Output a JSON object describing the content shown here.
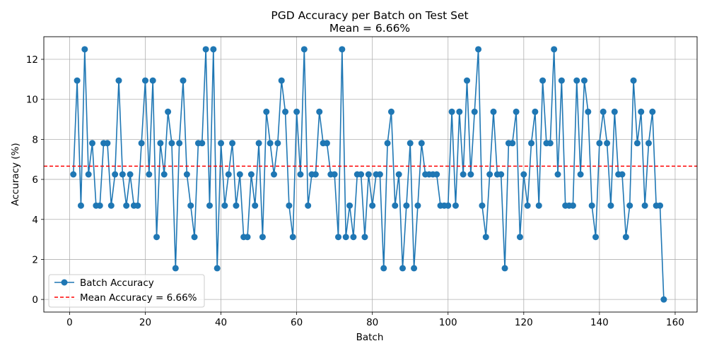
{
  "chart_data": {
    "type": "line",
    "title": "PGD Accuracy per Batch on Test Set",
    "subtitle": "Mean = 6.66%",
    "xlabel": "Batch",
    "ylabel": "Accuracy (%)",
    "xlim": [
      -6.8,
      165.8
    ],
    "ylim": [
      -0.63,
      13.13
    ],
    "xticks": [
      0,
      20,
      40,
      60,
      80,
      100,
      120,
      140,
      160
    ],
    "yticks": [
      0,
      2,
      4,
      6,
      8,
      10,
      12
    ],
    "grid": true,
    "legend_position": "lower-left",
    "series": [
      {
        "name": "Batch Accuracy",
        "color": "#1f77b4",
        "marker": "circle",
        "x": [
          1,
          2,
          3,
          4,
          5,
          6,
          7,
          8,
          9,
          10,
          11,
          12,
          13,
          14,
          15,
          16,
          17,
          18,
          19,
          20,
          21,
          22,
          23,
          24,
          25,
          26,
          27,
          28,
          29,
          30,
          31,
          32,
          33,
          34,
          35,
          36,
          37,
          38,
          39,
          40,
          41,
          42,
          43,
          44,
          45,
          46,
          47,
          48,
          49,
          50,
          51,
          52,
          53,
          54,
          55,
          56,
          57,
          58,
          59,
          60,
          61,
          62,
          63,
          64,
          65,
          66,
          67,
          68,
          69,
          70,
          71,
          72,
          73,
          74,
          75,
          76,
          77,
          78,
          79,
          80,
          81,
          82,
          83,
          84,
          85,
          86,
          87,
          88,
          89,
          90,
          91,
          92,
          93,
          94,
          95,
          96,
          97,
          98,
          99,
          100,
          101,
          102,
          103,
          104,
          105,
          106,
          107,
          108,
          109,
          110,
          111,
          112,
          113,
          114,
          115,
          116,
          117,
          118,
          119,
          120,
          121,
          122,
          123,
          124,
          125,
          126,
          127,
          128,
          129,
          130,
          131,
          132,
          133,
          134,
          135,
          136,
          137,
          138,
          139,
          140,
          141,
          142,
          143,
          144,
          145,
          146,
          147,
          148,
          149,
          150,
          151,
          152,
          153,
          154,
          155,
          156,
          157
        ],
        "values": [
          6.25,
          10.94,
          4.69,
          12.5,
          6.25,
          7.81,
          4.69,
          4.69,
          7.81,
          7.81,
          4.69,
          6.25,
          10.94,
          6.25,
          4.69,
          6.25,
          4.69,
          4.69,
          7.81,
          10.94,
          6.25,
          10.94,
          3.12,
          7.81,
          6.25,
          9.38,
          7.81,
          1.56,
          7.81,
          10.94,
          6.25,
          4.69,
          3.12,
          7.81,
          7.81,
          12.5,
          4.69,
          12.5,
          1.56,
          7.81,
          4.69,
          6.25,
          7.81,
          4.69,
          6.25,
          3.12,
          3.12,
          6.25,
          4.69,
          7.81,
          3.12,
          9.38,
          7.81,
          6.25,
          7.81,
          10.94,
          9.38,
          4.69,
          3.12,
          9.38,
          6.25,
          12.5,
          4.69,
          6.25,
          6.25,
          9.38,
          7.81,
          7.81,
          6.25,
          6.25,
          3.12,
          12.5,
          3.12,
          4.69,
          3.12,
          6.25,
          6.25,
          3.12,
          6.25,
          4.69,
          6.25,
          6.25,
          1.56,
          7.81,
          9.38,
          4.69,
          6.25,
          1.56,
          4.69,
          7.81,
          1.56,
          4.69,
          7.81,
          6.25,
          6.25,
          6.25,
          6.25,
          4.69,
          4.69,
          4.69,
          9.38,
          4.69,
          9.38,
          6.25,
          10.94,
          6.25,
          9.38,
          12.5,
          4.69,
          3.12,
          6.25,
          9.38,
          6.25,
          6.25,
          1.56,
          7.81,
          7.81,
          9.38,
          3.12,
          6.25,
          4.69,
          7.81,
          9.38,
          4.69,
          10.94,
          7.81,
          7.81,
          12.5,
          6.25,
          10.94,
          4.69,
          4.69,
          4.69,
          10.94,
          6.25,
          10.94,
          9.38,
          4.69,
          3.12,
          7.81,
          9.38,
          7.81,
          4.69,
          9.38,
          6.25,
          6.25,
          3.12,
          4.69,
          10.94,
          7.81,
          9.38,
          4.69,
          7.81,
          9.38,
          4.69,
          4.69,
          0.0
        ]
      },
      {
        "name": "Mean Accuracy = 6.66%",
        "color": "#ff0000",
        "style": "dashed",
        "value": 6.66
      }
    ]
  }
}
